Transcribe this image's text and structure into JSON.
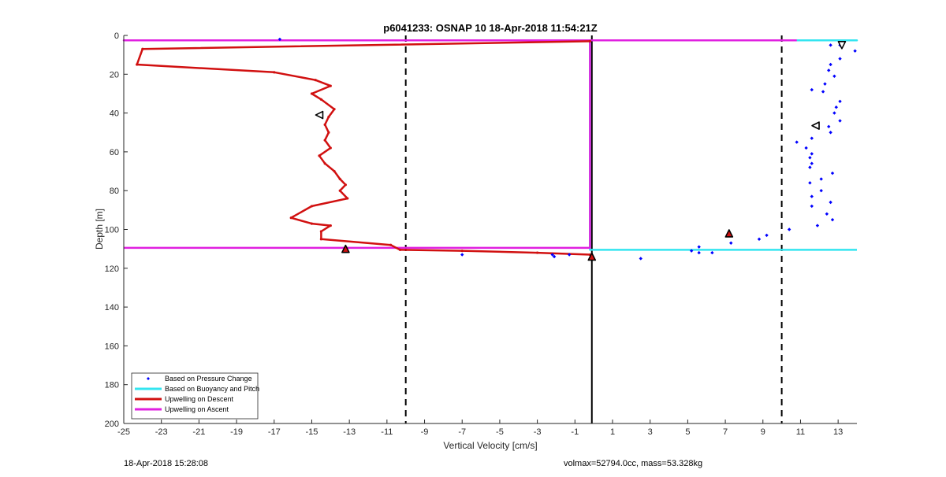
{
  "chart_data": {
    "type": "line",
    "title": "p6041233: OSNAP 10 18-Apr-2018 11:54:21Z",
    "xlabel": "Vertical Velocity [cm/s]",
    "ylabel": "Depth [m]",
    "xlim": [
      -25,
      14
    ],
    "ylim": [
      0,
      200
    ],
    "y_reversed": true,
    "xticks": [
      -25,
      -23,
      -21,
      -19,
      -17,
      -15,
      -13,
      -11,
      -9,
      -7,
      -5,
      -3,
      -1,
      1,
      3,
      5,
      7,
      9,
      11,
      13
    ],
    "yticks": [
      0,
      20,
      40,
      60,
      80,
      100,
      120,
      140,
      160,
      180,
      200
    ],
    "grid": false,
    "legend": {
      "placement": "bottom-left",
      "entries": [
        {
          "label": "Based on Pressure Change",
          "color": "#0000ff",
          "style": "dot"
        },
        {
          "label": "Based on Buoyancy and Pitch",
          "color": "#33e5f0",
          "style": "line"
        },
        {
          "label": "Upwelling on Descent",
          "color": "#d11010",
          "style": "line"
        },
        {
          "label": "Upwelling on Ascent",
          "color": "#e020e0",
          "style": "line"
        }
      ]
    },
    "series": [
      {
        "name": "Based on Buoyancy and Pitch",
        "color": "#33e5f0",
        "style": "line",
        "points": [
          [
            -0.2,
            2.5
          ],
          [
            14,
            2.5
          ],
          [
            -0.2,
            2.5
          ],
          [
            -0.2,
            110.5
          ],
          [
            14,
            110.5
          ]
        ]
      },
      {
        "name": "Upwelling on Ascent",
        "color": "#e020e0",
        "style": "line",
        "points": [
          [
            -25,
            109.5
          ],
          [
            -0.2,
            109.5
          ],
          [
            -0.2,
            2.5
          ],
          [
            -25,
            2.5
          ],
          [
            -0.2,
            2.5
          ],
          [
            10.8,
            2.5
          ]
        ]
      },
      {
        "name": "Upwelling on Descent",
        "color": "#d11010",
        "style": "line",
        "points": [
          [
            -0.2,
            3
          ],
          [
            -24,
            7
          ],
          [
            -24.3,
            15
          ],
          [
            -17,
            19
          ],
          [
            -14.8,
            23
          ],
          [
            -14,
            26
          ],
          [
            -15,
            30
          ],
          [
            -14.5,
            33
          ],
          [
            -13.8,
            38
          ],
          [
            -14.1,
            42
          ],
          [
            -14.3,
            46
          ],
          [
            -14.1,
            50
          ],
          [
            -14.3,
            54
          ],
          [
            -14,
            58
          ],
          [
            -14.6,
            62
          ],
          [
            -14.3,
            66
          ],
          [
            -13.8,
            70
          ],
          [
            -13.5,
            74
          ],
          [
            -13.2,
            77
          ],
          [
            -13.5,
            80
          ],
          [
            -13.1,
            84
          ],
          [
            -15,
            88
          ],
          [
            -16.1,
            94
          ],
          [
            -15,
            97
          ],
          [
            -14,
            98
          ],
          [
            -14.5,
            101
          ],
          [
            -14.5,
            105
          ],
          [
            -10.8,
            108
          ],
          [
            -10.3,
            110.5
          ],
          [
            -7,
            111
          ],
          [
            -3,
            112
          ],
          [
            -0.2,
            113
          ]
        ]
      },
      {
        "name": "Based on Pressure Change",
        "color": "#0000ff",
        "style": "dot",
        "points": [
          [
            -16.7,
            2
          ],
          [
            13.1,
            5
          ],
          [
            12.6,
            5
          ],
          [
            13.9,
            8
          ],
          [
            13.1,
            12
          ],
          [
            12.6,
            15
          ],
          [
            12.5,
            18
          ],
          [
            12.8,
            21
          ],
          [
            12.3,
            25
          ],
          [
            12.2,
            29
          ],
          [
            11.6,
            28
          ],
          [
            13.1,
            34
          ],
          [
            12.9,
            37
          ],
          [
            12.8,
            40
          ],
          [
            13.1,
            44
          ],
          [
            12.5,
            47
          ],
          [
            12.6,
            50
          ],
          [
            11.6,
            53
          ],
          [
            10.8,
            55
          ],
          [
            11.3,
            58
          ],
          [
            11.6,
            61
          ],
          [
            11.5,
            63
          ],
          [
            11.6,
            66
          ],
          [
            11.5,
            68
          ],
          [
            12.7,
            71
          ],
          [
            12.1,
            74
          ],
          [
            11.5,
            76
          ],
          [
            12.1,
            80
          ],
          [
            11.6,
            83
          ],
          [
            12.6,
            86
          ],
          [
            11.6,
            88
          ],
          [
            12.4,
            92
          ],
          [
            12.7,
            95
          ],
          [
            11.9,
            98
          ],
          [
            10.4,
            100
          ],
          [
            9.2,
            103
          ],
          [
            8.8,
            105
          ],
          [
            7.3,
            107
          ],
          [
            6.3,
            112
          ],
          [
            5.6,
            109
          ],
          [
            5.2,
            111
          ],
          [
            5.6,
            112
          ],
          [
            2.5,
            115
          ],
          [
            -1.3,
            113
          ],
          [
            -2.1,
            114
          ],
          [
            -2.2,
            113
          ],
          [
            -7,
            113
          ]
        ]
      }
    ],
    "markers": [
      {
        "shape": "triangle-left",
        "x": -14.6,
        "y": 41,
        "fill": "#ffffff"
      },
      {
        "shape": "triangle-left",
        "x": 11.8,
        "y": 46.5,
        "fill": "#ffffff"
      },
      {
        "shape": "triangle-down",
        "x": 13.2,
        "y": 5,
        "fill": "#ffffff"
      },
      {
        "shape": "triangle-up",
        "x": -13.2,
        "y": 110,
        "fill": "#d11010"
      },
      {
        "shape": "triangle-up",
        "x": 7.2,
        "y": 102,
        "fill": "#d11010"
      },
      {
        "shape": "triangle-up",
        "x": -0.1,
        "y": 114,
        "fill": "#d11010"
      }
    ],
    "reference_lines": [
      {
        "x": -10,
        "style": "dashed",
        "color": "#000000"
      },
      {
        "x": 10,
        "style": "dashed",
        "color": "#000000"
      },
      {
        "x": -0.1,
        "style": "solid",
        "color": "#000000"
      }
    ]
  },
  "footer": {
    "left": "18-Apr-2018 15:28:08",
    "right": "volmax=52794.0cc, mass=53.328kg"
  }
}
